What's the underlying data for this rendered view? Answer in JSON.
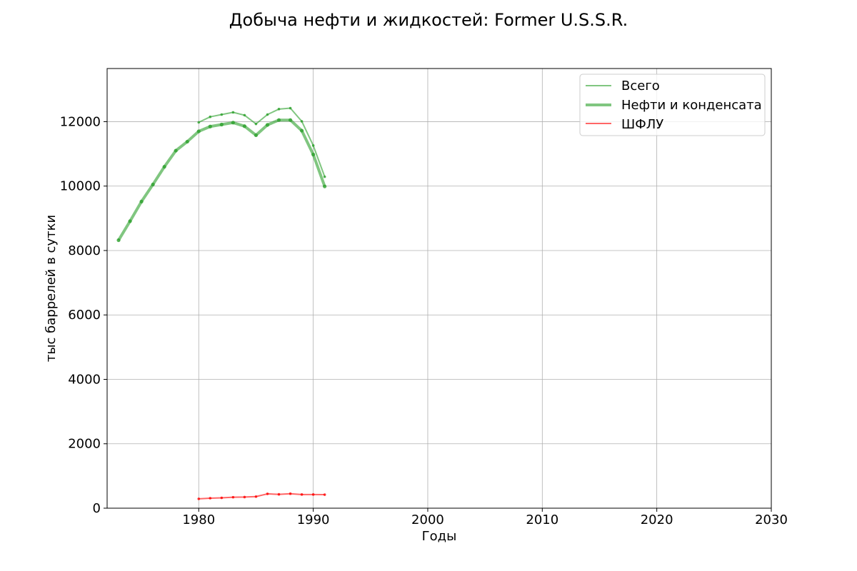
{
  "chart_data": {
    "type": "line",
    "title": "Добыча нефти и жидкостей: Former U.S.S.R.",
    "xlabel": "Годы",
    "ylabel": "тыс баррелей в сутки",
    "xlim": [
      1972,
      2030
    ],
    "ylim": [
      0,
      13650
    ],
    "xticks": [
      1980,
      1990,
      2000,
      2010,
      2020,
      2030
    ],
    "yticks": [
      0,
      2000,
      4000,
      6000,
      8000,
      10000,
      12000
    ],
    "grid": true,
    "legend_position": "top-right",
    "series": [
      {
        "name": "Всего",
        "color": "#2ca02c",
        "style": "thin",
        "x": [
          1980,
          1981,
          1982,
          1983,
          1984,
          1985,
          1986,
          1987,
          1988,
          1989,
          1990,
          1991
        ],
        "y": [
          11980,
          12150,
          12220,
          12290,
          12200,
          11930,
          12220,
          12390,
          12420,
          12010,
          11260,
          10290
        ]
      },
      {
        "name": "Нефти и конденсата",
        "color": "#2ca02c",
        "style": "thick",
        "x": [
          1973,
          1974,
          1975,
          1976,
          1977,
          1978,
          1979,
          1980,
          1981,
          1982,
          1983,
          1984,
          1985,
          1986,
          1987,
          1988,
          1989,
          1990,
          1991
        ],
        "y": [
          8320,
          8910,
          9520,
          10050,
          10600,
          11100,
          11380,
          11700,
          11850,
          11910,
          11970,
          11860,
          11580,
          11900,
          12050,
          12050,
          11720,
          10980,
          9990
        ]
      },
      {
        "name": "ШФЛУ",
        "color": "#ff0000",
        "style": "thin",
        "x": [
          1980,
          1981,
          1982,
          1983,
          1984,
          1985,
          1986,
          1987,
          1988,
          1989,
          1990,
          1991
        ],
        "y": [
          290,
          310,
          320,
          340,
          345,
          360,
          445,
          430,
          450,
          425,
          425,
          420
        ]
      }
    ]
  }
}
